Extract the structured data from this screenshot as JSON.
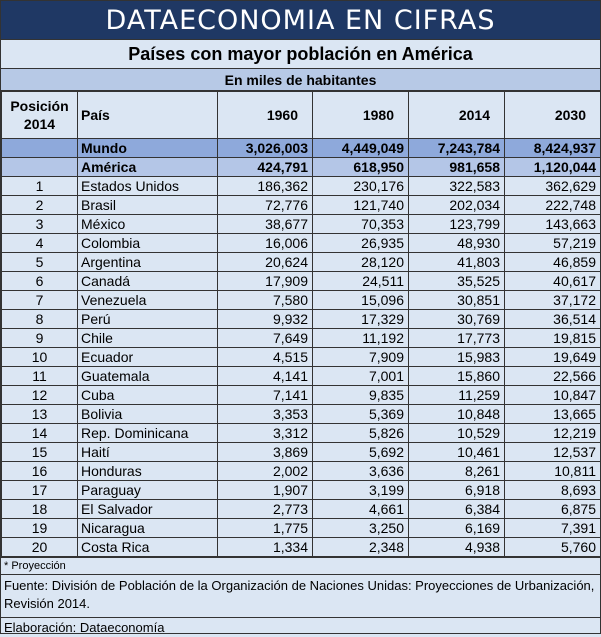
{
  "banner": "DATAECONOMIA EN CIFRAS",
  "title": "Países con mayor población en América",
  "subtitle": "En miles de habitantes",
  "headers": {
    "pos": "Posición 2014",
    "pais": "País",
    "y1": "1960",
    "y2": "1980",
    "y3": "2014",
    "y4": "2030"
  },
  "mundo": {
    "label": "Mundo",
    "v": [
      "3,026,003",
      "4,449,049",
      "7,243,784",
      "8,424,937"
    ]
  },
  "america": {
    "label": "América",
    "v": [
      "424,791",
      "618,950",
      "981,658",
      "1,120,044"
    ]
  },
  "rows": [
    {
      "pos": "1",
      "pais": "Estados Unidos",
      "v": [
        "186,362",
        "230,176",
        "322,583",
        "362,629"
      ]
    },
    {
      "pos": "2",
      "pais": "Brasil",
      "v": [
        "72,776",
        "121,740",
        "202,034",
        "222,748"
      ]
    },
    {
      "pos": "3",
      "pais": "México",
      "v": [
        "38,677",
        "70,353",
        "123,799",
        "143,663"
      ]
    },
    {
      "pos": "4",
      "pais": "Colombia",
      "v": [
        "16,006",
        "26,935",
        "48,930",
        "57,219"
      ]
    },
    {
      "pos": "5",
      "pais": "Argentina",
      "v": [
        "20,624",
        "28,120",
        "41,803",
        "46,859"
      ]
    },
    {
      "pos": "6",
      "pais": "Canadá",
      "v": [
        "17,909",
        "24,511",
        "35,525",
        "40,617"
      ]
    },
    {
      "pos": "7",
      "pais": "Venezuela",
      "v": [
        "7,580",
        "15,096",
        "30,851",
        "37,172"
      ]
    },
    {
      "pos": "8",
      "pais": "Perú",
      "v": [
        "9,932",
        "17,329",
        "30,769",
        "36,514"
      ]
    },
    {
      "pos": "9",
      "pais": "Chile",
      "v": [
        "7,649",
        "11,192",
        "17,773",
        "19,815"
      ]
    },
    {
      "pos": "10",
      "pais": "Ecuador",
      "v": [
        "4,515",
        "7,909",
        "15,983",
        "19,649"
      ]
    },
    {
      "pos": "11",
      "pais": "Guatemala",
      "v": [
        "4,141",
        "7,001",
        "15,860",
        "22,566"
      ]
    },
    {
      "pos": "12",
      "pais": "Cuba",
      "v": [
        "7,141",
        "9,835",
        "11,259",
        "10,847"
      ]
    },
    {
      "pos": "13",
      "pais": "Bolivia",
      "v": [
        "3,353",
        "5,369",
        "10,848",
        "13,665"
      ]
    },
    {
      "pos": "14",
      "pais": "Rep. Dominicana",
      "v": [
        "3,312",
        "5,826",
        "10,529",
        "12,219"
      ]
    },
    {
      "pos": "15",
      "pais": "Haití",
      "v": [
        "3,869",
        "5,692",
        "10,461",
        "12,537"
      ]
    },
    {
      "pos": "16",
      "pais": "Honduras",
      "v": [
        "2,002",
        "3,636",
        "8,261",
        "10,811"
      ]
    },
    {
      "pos": "17",
      "pais": "Paraguay",
      "v": [
        "1,907",
        "3,199",
        "6,918",
        "8,693"
      ]
    },
    {
      "pos": "18",
      "pais": "El Salvador",
      "v": [
        "2,773",
        "4,661",
        "6,384",
        "6,875"
      ]
    },
    {
      "pos": "19",
      "pais": "Nicaragua",
      "v": [
        "1,775",
        "3,250",
        "6,169",
        "7,391"
      ]
    },
    {
      "pos": "20",
      "pais": "Costa Rica",
      "v": [
        "1,334",
        "2,348",
        "4,938",
        "5,760"
      ]
    }
  ],
  "footer": {
    "note": "* Proyección",
    "source": "Fuente: División de Población de la Organización de Naciones Unidas: Proyecciones de Urbanización, Revisión 2014.",
    "credit": "Elaboración: Dataeconomía"
  }
}
